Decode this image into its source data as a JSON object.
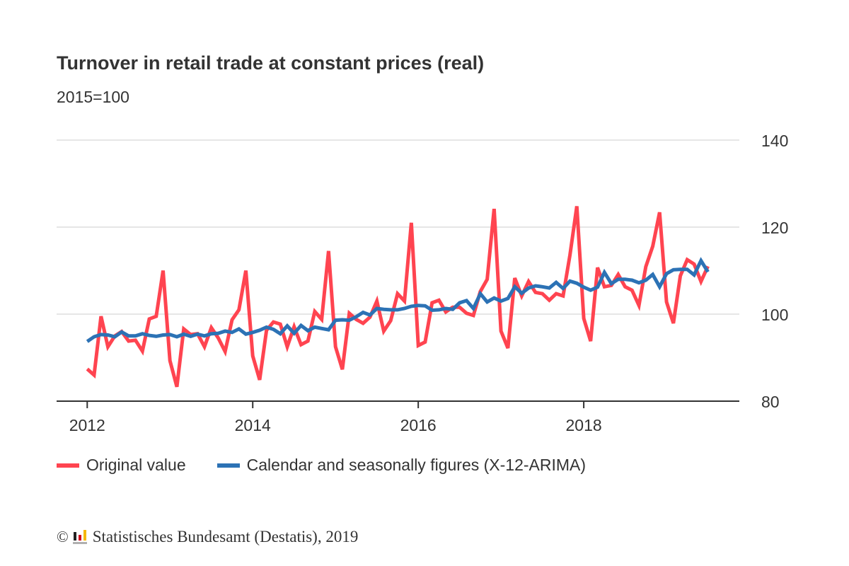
{
  "header": {
    "title": "Turnover in retail trade at constant prices (real)",
    "subtitle": "2015=100"
  },
  "legend": [
    {
      "label": "Original value",
      "color": "#ff4450"
    },
    {
      "label": "Calendar and seasonally figures (X-12-ARIMA)",
      "color": "#2c72b5"
    }
  ],
  "footer": {
    "copyright_symbol": "©",
    "source": "Statistisches Bundesamt (Destatis), 2019"
  },
  "chart_data": {
    "type": "line",
    "title": "Turnover in retail trade at constant prices (real)",
    "subtitle": "2015=100",
    "xlabel": "",
    "ylabel": "",
    "x_start": "2012-01",
    "x_frequency": "monthly",
    "x_ticks": [
      "2012",
      "2014",
      "2016",
      "2018"
    ],
    "x_tick_years": [
      2012,
      2014,
      2016,
      2018
    ],
    "xlim_years": [
      2011.63,
      2019.88
    ],
    "y_ticks": [
      80,
      100,
      120,
      140
    ],
    "ylim": [
      80,
      140
    ],
    "y_axis_side": "right",
    "grid": "horizontal",
    "legend_position": "bottom-left",
    "series": [
      {
        "name": "Original value",
        "color": "#ff4450",
        "values": [
          87.4,
          86.0,
          99.5,
          92.5,
          95.0,
          96.0,
          93.8,
          94.0,
          91.5,
          98.9,
          99.5,
          110.0,
          89.3,
          83.3,
          96.6,
          95.3,
          95.5,
          92.5,
          96.9,
          94.5,
          91.4,
          98.7,
          101.0,
          110.0,
          90.4,
          84.9,
          96.3,
          98.2,
          97.7,
          92.5,
          97.1,
          93.0,
          93.8,
          100.6,
          98.8,
          114.5,
          92.5,
          87.3,
          100.2,
          98.8,
          97.9,
          99.3,
          103.0,
          96.1,
          98.5,
          104.7,
          103.0,
          121.0,
          92.8,
          93.6,
          102.6,
          103.2,
          100.5,
          101.6,
          101.6,
          100.2,
          99.7,
          105.2,
          108.0,
          124.2,
          96.1,
          92.2,
          108.3,
          104.2,
          107.5,
          105.0,
          104.7,
          103.2,
          104.7,
          104.2,
          113.6,
          124.8,
          99.0,
          93.8,
          110.7,
          106.3,
          106.6,
          109.1,
          106.3,
          105.5,
          102.0,
          110.9,
          115.6,
          123.4,
          102.8,
          97.9,
          108.8,
          112.5,
          111.5,
          107.5,
          111.0
        ]
      },
      {
        "name": "Calendar and seasonally figures (X-12-ARIMA)",
        "color": "#2c72b5",
        "values": [
          93.7,
          94.8,
          95.3,
          95.2,
          94.8,
          95.9,
          95.0,
          95.0,
          95.5,
          95.1,
          94.9,
          95.2,
          95.3,
          94.8,
          95.4,
          94.9,
          95.4,
          95.0,
          95.5,
          95.6,
          96.1,
          95.8,
          96.6,
          95.4,
          95.8,
          96.3,
          97.0,
          96.5,
          95.5,
          97.3,
          95.6,
          97.4,
          96.2,
          97.0,
          96.7,
          96.4,
          98.6,
          98.7,
          98.6,
          99.4,
          100.4,
          99.8,
          101.3,
          101.1,
          101.0,
          101.0,
          101.3,
          101.8,
          102.0,
          101.9,
          100.9,
          101.0,
          101.3,
          101.1,
          102.6,
          103.1,
          101.3,
          104.7,
          102.8,
          103.7,
          103.0,
          103.6,
          106.3,
          104.8,
          106.0,
          106.5,
          106.3,
          106.0,
          107.3,
          105.9,
          107.6,
          107.1,
          106.2,
          105.5,
          106.2,
          109.6,
          107.0,
          108.0,
          108.0,
          107.8,
          107.2,
          107.8,
          109.1,
          106.3,
          109.3,
          110.2,
          110.3,
          110.3,
          109.0,
          112.3,
          109.7
        ]
      }
    ]
  }
}
